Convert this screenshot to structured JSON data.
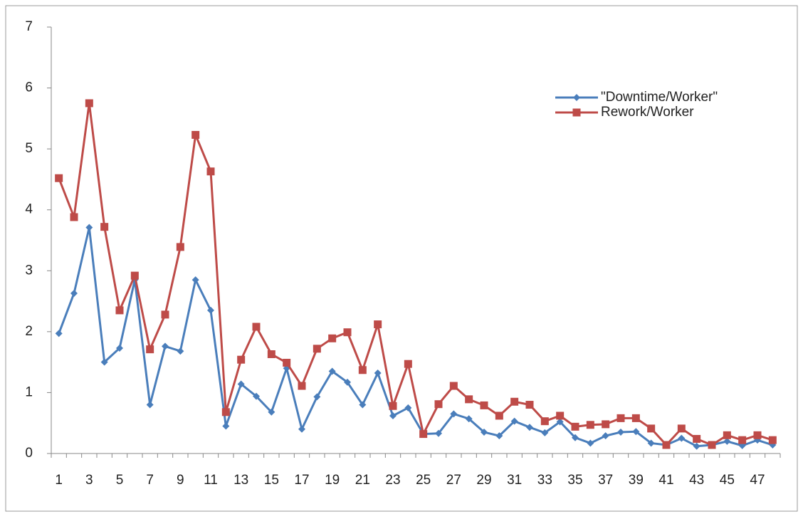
{
  "chart_data": {
    "type": "line",
    "categories": [
      1,
      null,
      3,
      null,
      5,
      null,
      7,
      null,
      9,
      null,
      11,
      null,
      13,
      null,
      15,
      null,
      17,
      null,
      19,
      null,
      21,
      null,
      23,
      null,
      25,
      null,
      27,
      null,
      29,
      null,
      31,
      null,
      33,
      null,
      35,
      null,
      37,
      null,
      39,
      null,
      41,
      null,
      43,
      null,
      45,
      null,
      47,
      null
    ],
    "series": [
      {
        "name": "\"Downtime/Worker\"",
        "color": "#4a7ebb",
        "marker": "diamond",
        "values": [
          1.97,
          2.63,
          3.71,
          1.5,
          1.73,
          2.85,
          0.8,
          1.76,
          1.68,
          2.85,
          2.35,
          0.45,
          1.14,
          0.94,
          0.68,
          1.4,
          0.4,
          0.93,
          1.35,
          1.17,
          0.8,
          1.32,
          0.62,
          0.75,
          0.32,
          0.33,
          0.65,
          0.57,
          0.35,
          0.29,
          0.53,
          0.43,
          0.34,
          0.52,
          0.26,
          0.17,
          0.29,
          0.35,
          0.36,
          0.17,
          0.14,
          0.25,
          0.12,
          0.14,
          0.2,
          0.13,
          0.22,
          0.14
        ]
      },
      {
        "name": "Rework/Worker",
        "color": "#be4b48",
        "marker": "square",
        "values": [
          4.52,
          3.88,
          5.75,
          3.72,
          2.35,
          2.92,
          1.71,
          2.28,
          3.39,
          5.23,
          4.63,
          0.68,
          1.54,
          2.08,
          1.63,
          1.49,
          1.11,
          1.72,
          1.89,
          1.99,
          1.37,
          2.12,
          0.78,
          1.47,
          0.32,
          0.81,
          1.11,
          0.89,
          0.79,
          0.62,
          0.85,
          0.8,
          0.53,
          0.62,
          0.44,
          0.47,
          0.48,
          0.58,
          0.58,
          0.41,
          0.14,
          0.41,
          0.24,
          0.14,
          0.3,
          0.22,
          0.3,
          0.22
        ]
      }
    ],
    "ylim": [
      0,
      7
    ],
    "yticks": [
      0,
      1,
      2,
      3,
      4,
      5,
      6,
      7
    ],
    "grid": false,
    "legend": "upper right"
  }
}
